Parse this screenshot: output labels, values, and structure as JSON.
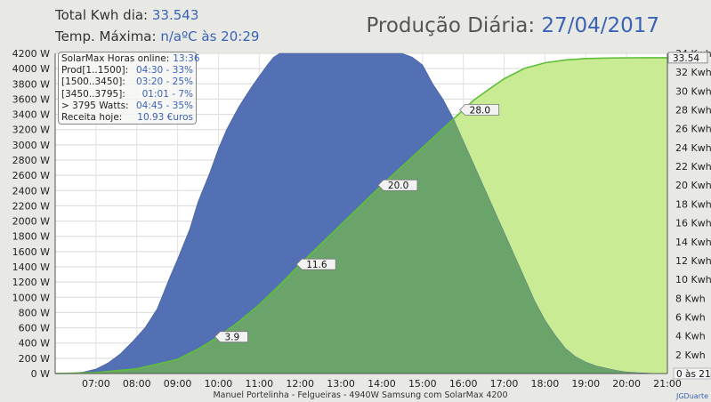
{
  "header": {
    "total_label": "Total Kwh dia:",
    "total_value": "33.543",
    "temp_label": "Temp. Máxima:",
    "temp_value": "n/aºC às 20:29",
    "title_label": "Produção Diária:",
    "title_date": "27/04/2017"
  },
  "stats": {
    "title_label": "SolarMax Horas online:",
    "title_value": "13:36",
    "rows": [
      {
        "label": "Prod[1..1500]:",
        "value": "04:30 - 33%"
      },
      {
        "label": "[1500..3450]:",
        "value": "03:20 - 25%"
      },
      {
        "label": "[3450..3795]:",
        "value": "01:01 - 7%"
      },
      {
        "label": "> 3795 Watts:",
        "value": "04:45 - 35%"
      },
      {
        "label": "Receita hoje:",
        "value": "10.93 €uros"
      }
    ]
  },
  "footer": {
    "caption": "Manuel Portelinha - Felgueiras -  4940W Samsung com SolarMax 4200",
    "credit": "JGDuarte"
  },
  "chart_data": {
    "type": "area",
    "x_unit": "time of day",
    "x_ticks": [
      "07:00",
      "08:00",
      "09:00",
      "10:00",
      "11:00",
      "12:00",
      "13:00",
      "14:00",
      "15:00",
      "16:00",
      "17:00",
      "18:00",
      "19:00",
      "20:00",
      "21:00"
    ],
    "y_left": {
      "min": 0,
      "max": 4200,
      "step": 200,
      "unit": "W",
      "tick_labels": [
        "0 W",
        "200 W",
        "400 W",
        "600 W",
        "800 W",
        "1000 W",
        "1200 W",
        "1400 W",
        "1600 W",
        "1800 W",
        "2000 W",
        "2200 W",
        "2400 W",
        "2600 W",
        "2800 W",
        "3000 W",
        "3200 W",
        "3400 W",
        "3600 W",
        "3800 W",
        "4000 W",
        "4200 W"
      ]
    },
    "y_right": {
      "min": 0,
      "max": 34,
      "step": 2,
      "unit": "Kwh",
      "tick_labels": [
        "0 Kwh",
        "2 Kwh",
        "4 Kwh",
        "6 Kwh",
        "8 Kwh",
        "10 Kwh",
        "12 Kwh",
        "14 Kwh",
        "16 Kwh",
        "18 Kwh",
        "20 Kwh",
        "22 Kwh",
        "24 Kwh",
        "26 Kwh",
        "28 Kwh",
        "30 Kwh",
        "32 Kwh",
        "34 Kwh"
      ]
    },
    "power_series": {
      "unit": "W",
      "color": "#5470b4",
      "x_hours": [
        6.3,
        6.7,
        7.0,
        7.3,
        7.6,
        7.9,
        8.2,
        8.5,
        8.8,
        9.0,
        9.3,
        9.5,
        9.8,
        10.0,
        10.2,
        10.5,
        10.8,
        11.0,
        11.2,
        11.35,
        11.5,
        12.0,
        12.5,
        13.0,
        13.5,
        14.0,
        14.5,
        14.75,
        15.0,
        15.25,
        15.5,
        15.75,
        16.0,
        16.25,
        16.5,
        16.75,
        17.0,
        17.25,
        17.5,
        17.75,
        18.0,
        18.25,
        18.5,
        18.75,
        19.0,
        19.25,
        19.5,
        19.75,
        20.0,
        20.25,
        20.5,
        20.75
      ],
      "watts": [
        0,
        20,
        60,
        140,
        260,
        420,
        600,
        850,
        1250,
        1500,
        1900,
        2250,
        2650,
        2950,
        3200,
        3500,
        3750,
        3900,
        4050,
        4150,
        4200,
        4200,
        4200,
        4200,
        4200,
        4200,
        4200,
        4150,
        4050,
        3800,
        3600,
        3350,
        3050,
        2750,
        2450,
        2150,
        1850,
        1550,
        1250,
        950,
        700,
        500,
        330,
        220,
        150,
        100,
        70,
        40,
        20,
        10,
        5,
        0
      ]
    },
    "energy_series": {
      "unit": "Kwh",
      "color": "#5fbf3a",
      "x_hours": [
        6.0,
        7.0,
        8.0,
        9.0,
        9.5,
        10.0,
        10.5,
        11.0,
        11.5,
        12.0,
        12.5,
        13.0,
        13.5,
        14.0,
        14.5,
        15.0,
        15.5,
        16.0,
        16.25,
        16.5,
        17.0,
        17.5,
        18.0,
        18.5,
        19.0,
        19.5,
        20.0,
        20.5,
        21.0
      ],
      "kwh": [
        0,
        0.1,
        0.5,
        1.5,
        2.6,
        3.9,
        5.5,
        7.3,
        9.4,
        11.6,
        13.7,
        15.8,
        17.9,
        20.0,
        22.0,
        24.0,
        26.0,
        28.0,
        29.0,
        29.8,
        31.3,
        32.4,
        33.0,
        33.3,
        33.45,
        33.5,
        33.53,
        33.54,
        33.54
      ]
    },
    "annotations": [
      {
        "x_hour": 10.0,
        "kwh": 3.9,
        "label": "3.9"
      },
      {
        "x_hour": 12.0,
        "kwh": 11.6,
        "label": "11.6"
      },
      {
        "x_hour": 14.0,
        "kwh": 20.0,
        "label": "20.0"
      },
      {
        "x_hour": 16.0,
        "kwh": 28.0,
        "label": "28.0"
      }
    ],
    "final_total_label": "33.54",
    "overlap_right_label": "0 às 21"
  }
}
